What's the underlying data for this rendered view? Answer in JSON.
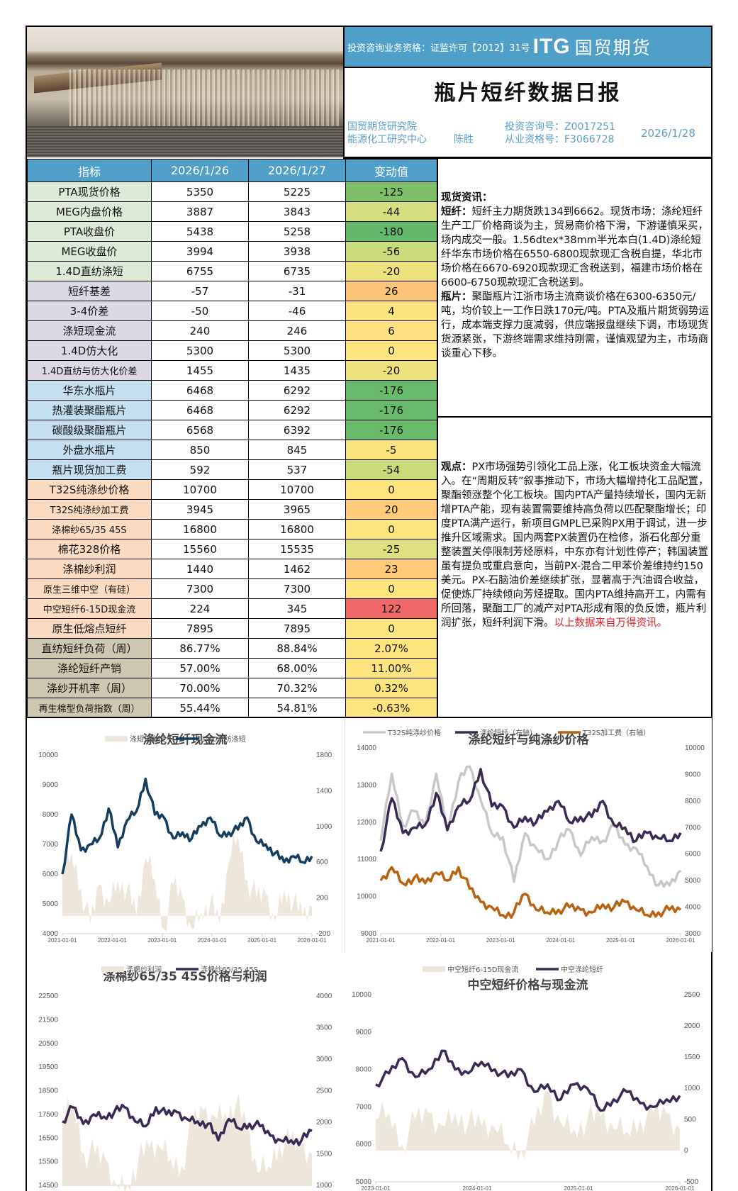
{
  "header": {
    "license": "投资咨询业务资格：证监许可【2012】31号",
    "logo_en": "ITG",
    "logo_cn": "国贸期货",
    "title": "瓶片短纤数据日报",
    "org_line1": "国贸期货研究院",
    "org_line2": "能源化工研究中心",
    "author": "陈胜",
    "consult_no": "投资咨询号：Z0017251",
    "qual_no": "从业资格号：F3066728",
    "date": "2026/1/28"
  },
  "table": {
    "columns": [
      "指标",
      "2026/1/26",
      "2026/1/27",
      "变动值"
    ],
    "rows": [
      {
        "label": "PTA现货价格",
        "d1": "5350",
        "d2": "5225",
        "chg": "-125",
        "color": "#7fbf6a",
        "group": "green"
      },
      {
        "label": "MEG内盘价格",
        "d1": "3887",
        "d2": "3843",
        "chg": "-44",
        "color": "#d5df82",
        "group": "green"
      },
      {
        "label": "PTA收盘价",
        "d1": "5438",
        "d2": "5258",
        "chg": "-180",
        "color": "#63b86b",
        "group": "green"
      },
      {
        "label": "MEG收盘价",
        "d1": "3994",
        "d2": "3938",
        "chg": "-56",
        "color": "#cadb7c",
        "group": "green"
      },
      {
        "label": "1.4D直纺涤短",
        "d1": "6755",
        "d2": "6735",
        "chg": "-20",
        "color": "#eee27f",
        "group": "green"
      },
      {
        "label": "短纤基差",
        "d1": "-57",
        "d2": "-31",
        "chg": "26",
        "color": "#fcc57a",
        "group": "purple"
      },
      {
        "label": "3-4价差",
        "d1": "-50",
        "d2": "-46",
        "chg": "4",
        "color": "#fde280",
        "group": "purple"
      },
      {
        "label": "涤短现金流",
        "d1": "240",
        "d2": "246",
        "chg": "6",
        "color": "#fde07f",
        "group": "purple"
      },
      {
        "label": "1.4D仿大化",
        "d1": "5300",
        "d2": "5300",
        "chg": "0",
        "color": "#fde47f",
        "group": "purple"
      },
      {
        "label": "1.4D直纺与仿大化价差",
        "d1": "1455",
        "d2": "1435",
        "chg": "-20",
        "color": "#eee27f",
        "group": "purple"
      },
      {
        "label": "华东水瓶片",
        "d1": "6468",
        "d2": "6292",
        "chg": "-176",
        "color": "#69ba6b",
        "group": "blue"
      },
      {
        "label": "热灌装聚酯瓶片",
        "d1": "6468",
        "d2": "6292",
        "chg": "-176",
        "color": "#69ba6b",
        "group": "blue"
      },
      {
        "label": "碳酸级聚酯瓶片",
        "d1": "6568",
        "d2": "6392",
        "chg": "-176",
        "color": "#69ba6b",
        "group": "blue"
      },
      {
        "label": "外盘水瓶片",
        "d1": "850",
        "d2": "845",
        "chg": "-5",
        "color": "#fbe380",
        "group": "blue"
      },
      {
        "label": "瓶片现货加工费",
        "d1": "592",
        "d2": "537",
        "chg": "-54",
        "color": "#cadb7c",
        "group": "blue"
      },
      {
        "label": "T32S纯涤纱价格",
        "d1": "10700",
        "d2": "10700",
        "chg": "0",
        "color": "#fde47f",
        "group": "peach"
      },
      {
        "label": "T32S纯涤纱加工费",
        "d1": "3945",
        "d2": "3965",
        "chg": "20",
        "color": "#fdcb7a",
        "group": "peach"
      },
      {
        "label": "涤棉纱65/35 45S",
        "d1": "16800",
        "d2": "16800",
        "chg": "0",
        "color": "#fde47f",
        "group": "peach"
      },
      {
        "label": "棉花328价格",
        "d1": "15560",
        "d2": "15535",
        "chg": "-25",
        "color": "#dfe07f",
        "group": "peach"
      },
      {
        "label": "涤棉纱利润",
        "d1": "1440",
        "d2": "1462",
        "chg": "23",
        "color": "#fdcb7a",
        "group": "peach"
      },
      {
        "label": "原生三维中空（有硅）",
        "d1": "7300",
        "d2": "7300",
        "chg": "0",
        "color": "#fde47f",
        "group": "peach"
      },
      {
        "label": "中空短纤6-15D现金流",
        "d1": "224",
        "d2": "345",
        "chg": "122",
        "color": "#f06868",
        "group": "peach"
      },
      {
        "label": "原生低熔点短纤",
        "d1": "7895",
        "d2": "7895",
        "chg": "0",
        "color": "#fde47f",
        "group": "peach"
      },
      {
        "label": "直纺短纤负荷（周）",
        "d1": "86.77%",
        "d2": "88.84%",
        "chg": "2.07%",
        "color": "#fde47f",
        "group": "tan"
      },
      {
        "label": "涤纶短纤产销",
        "d1": "57.00%",
        "d2": "68.00%",
        "chg": "11.00%",
        "color": "#fde47f",
        "group": "tan"
      },
      {
        "label": "涤纱开机率（周）",
        "d1": "70.00%",
        "d2": "70.32%",
        "chg": "0.32%",
        "color": "#fde47f",
        "group": "tan"
      },
      {
        "label": "再生棉型负荷指数（周）",
        "d1": "55.44%",
        "d2": "54.81%",
        "chg": "-0.63%",
        "color": "#fde47f",
        "group": "tan"
      }
    ]
  },
  "spot_news": {
    "heading": "现货资讯：",
    "pf_label": "短纤：",
    "pf_text": "短纤主力期货跌134到6662。现货市场：涤纶短纤生产工厂价格商谈为主，贸易商价格下滑，下游谨慎采买，场内成交一般。1.56dtex*38mm半光本白(1.4D)涤纶短纤华东市场价格在6550-6800现款现汇含税自提，华北市场价格在6670-6920现款现汇含税送到，福建市场价格在6600-6750现款现汇含税送到。",
    "bc_label": "瓶片：",
    "bc_text": "聚酯瓶片江浙市场主流商谈价格在6300-6350元/吨，均价较上一工作日跌170元/吨。PTA及瓶片期货弱势运行，成本端支撑力度减弱，供应端报盘继续下调，市场现货货源紧张，下游终端需求维持刚需，谨慎观望为主，市场商谈重心下移。"
  },
  "opinion": {
    "label": "观点：",
    "text": "PX市场强势引领化工品上涨，化工板块资金大幅流入。在“周期反转”叙事推动下，市场大幅增持化工品配置，聚酯领涨整个化工板块。国内PTA产量持续增长，国内无新增PTA产能，现有装置需要维持高负荷以匹配聚酯增长；印度PTA满产运行，新项目GMPL已采购PX用于调试，进一步推升区域需求。国内两套PX装置仍在检修，浙石化部分重整装置关停限制芳烃原料，中东亦有计划性停产；韩国装置虽有提负或重启意向，当前PX-混合二甲苯价差维持约150美元。PX-石脑油价差继续扩张，显著高于汽油调合收益，促使炼厂持续倾向芳烃提取。国内PTA维持高开工，内需有所回落，聚酯工厂的减产对PTA形成有限的负反馈，瓶片利润扩张，短纤利润下滑。",
    "source": "以上数据来自万得资讯。"
  },
  "chart_data": [
    {
      "type": "line",
      "title": "涤纶短纤现金流",
      "x": [
        "2021-01-01",
        "2022-01-01",
        "2023-01-01",
        "2024-01-01",
        "2025-01-01",
        "2026-01-01"
      ],
      "ylim_left": [
        4000,
        10000
      ],
      "yticks_left": [
        "10000",
        "9000",
        "8000",
        "7000",
        "6000",
        "5000",
        "4000"
      ],
      "ylim_right": [
        -200,
        1800
      ],
      "yticks_right": [
        "1800",
        "1400",
        "1000",
        "600",
        "200",
        "-200"
      ],
      "series": [
        {
          "name": "涤短现金流",
          "axis": "right",
          "kind": "area",
          "color": "#ede6da",
          "values": [
            450,
            700,
            300,
            -100,
            350,
            150,
            400,
            300,
            0,
            650,
            400,
            -150,
            350,
            200,
            -150,
            50,
            150,
            -100,
            600,
            900,
            400,
            200,
            250,
            -50,
            300,
            150,
            0,
            100
          ]
        },
        {
          "name": "1.4D直纺涤短",
          "axis": "left",
          "kind": "line",
          "color": "#173d5e",
          "values": [
            6000,
            8000,
            6800,
            7000,
            7200,
            8200,
            6900,
            7800,
            8100,
            9200,
            8000,
            7900,
            7200,
            7400,
            7200,
            7600,
            7900,
            7300,
            7400,
            7500,
            7900,
            7100,
            7000,
            6700,
            6400,
            6600,
            6400,
            6600
          ]
        }
      ],
      "legend_position": "top"
    },
    {
      "type": "line",
      "title": "涤纶短纤与纯涤纱价格",
      "x": [
        "2021-01-01",
        "2022-01-01",
        "2023-01-01",
        "2024-01-01",
        "2025-01-01",
        "2026-01-01"
      ],
      "ylim_left": [
        9000,
        14000
      ],
      "yticks_left": [
        "14000",
        "13000",
        "12000",
        "11000",
        "10000",
        "9000"
      ],
      "ylim_right": [
        3000,
        10000
      ],
      "yticks_right": [
        "10000",
        "9000",
        "8000",
        "7000",
        "6000",
        "5000",
        "4000",
        "3000"
      ],
      "series": [
        {
          "name": "T32S纯涤纱价格",
          "axis": "left",
          "color": "#c8c8c8",
          "values": [
            11500,
            13300,
            11900,
            12300,
            11900,
            13300,
            11800,
            13100,
            13500,
            12600,
            11700,
            11600,
            10400,
            11700,
            11300,
            11000,
            11500,
            11800,
            11100,
            11600,
            11500,
            11900,
            11400,
            11300,
            10800,
            10300,
            10300,
            10700
          ]
        },
        {
          "name": "涤纶短纤（右轴）",
          "axis": "right",
          "color": "#3b2a55",
          "values": [
            6100,
            8100,
            6800,
            7000,
            7100,
            8300,
            6900,
            7800,
            8000,
            9200,
            7800,
            7800,
            7000,
            7400,
            7200,
            7600,
            8000,
            7200,
            7400,
            7400,
            8000,
            7100,
            7000,
            6500,
            6800,
            6600,
            6500,
            6800
          ]
        },
        {
          "name": "T32S加工费（右轴）",
          "axis": "right",
          "color": "#b9620f",
          "values": [
            5000,
            5500,
            4900,
            5100,
            4900,
            5300,
            5000,
            5500,
            4700,
            4200,
            4000,
            3700,
            3800,
            4500,
            3900,
            3800,
            3900,
            4000,
            3900,
            3800,
            4100,
            4000,
            4200,
            3900,
            3700,
            3800,
            3900,
            3900
          ]
        }
      ],
      "legend_position": "top"
    },
    {
      "type": "line",
      "title": "涤棉纱65/35 45S价格与利润",
      "ylim_left": [
        14500,
        22500
      ],
      "yticks_left": [
        "22500",
        "21500",
        "20500",
        "19500",
        "18500",
        "17500",
        "16500",
        "15500",
        "14500"
      ],
      "ylim_right": [
        1000,
        4000
      ],
      "yticks_right": [
        "4000",
        "3500",
        "3000",
        "2500",
        "2000",
        "1500",
        "1000"
      ],
      "series": [
        {
          "name": "涤棉纱利润",
          "axis": "right",
          "kind": "area",
          "color": "#ede6da",
          "values": [
            2000,
            2300,
            1500,
            1500,
            1400,
            1000,
            1000,
            1400,
            1600,
            1600,
            1400,
            1300,
            2000,
            2200,
            2100,
            2150,
            2300,
            1900,
            1200,
            1300,
            1650,
            1700,
            1650,
            1500
          ]
        },
        {
          "name": "涤棉纱65/35 45S",
          "axis": "left",
          "color": "#3b2a55",
          "values": [
            17200,
            17800,
            17100,
            17500,
            17400,
            17600,
            17800,
            17200,
            17000,
            17800,
            17500,
            17600,
            17300,
            17200,
            17100,
            16400,
            17300,
            16900,
            17100,
            17000,
            16600,
            16400,
            16400,
            16400,
            16800
          ]
        }
      ],
      "legend_position": "top"
    },
    {
      "type": "line",
      "title": "中空短纤价格与现金流",
      "x": [
        "2023-01-01",
        "2024-01-01",
        "2025-01-01",
        "2026-01-01"
      ],
      "ylim_left": [
        5000,
        10000
      ],
      "yticks_left": [
        "10000",
        "9000",
        "8000",
        "7000",
        "6000",
        "5000"
      ],
      "ylim_right": [
        -500,
        2500
      ],
      "yticks_right": [
        "2500",
        "2000",
        "1500",
        "1000",
        "500",
        "0",
        "-500"
      ],
      "series": [
        {
          "name": "中空短纤6-15D现金流",
          "axis": "right",
          "kind": "area",
          "color": "#ede6da",
          "values": [
            500,
            600,
            100,
            500,
            600,
            400,
            600,
            450,
            400,
            350,
            100,
            0,
            400,
            950,
            450,
            350,
            500,
            550,
            350,
            300,
            500,
            600,
            600,
            350
          ]
        },
        {
          "name": "中空涤纶短纤",
          "axis": "left",
          "color": "#3b2a55",
          "values": [
            7600,
            7900,
            8300,
            7800,
            8000,
            8500,
            8000,
            7900,
            8200,
            8000,
            7800,
            8000,
            7400,
            7600,
            7200,
            7600,
            7500,
            6900,
            7200,
            7400,
            7100,
            7000,
            7200,
            7300
          ]
        }
      ],
      "legend_position": "top"
    }
  ]
}
